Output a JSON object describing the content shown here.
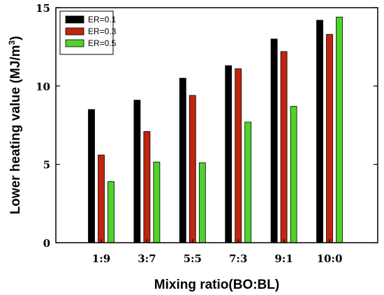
{
  "chart_data": {
    "type": "bar",
    "title": "",
    "xlabel": "Mixing ratio(BO:BL)",
    "ylabel": "Lower heating value (MJ/m³)",
    "ylabel_parts": {
      "text": "Lower heating value (MJ/m",
      "sup": "3",
      "close": ")"
    },
    "ylim": [
      0,
      15
    ],
    "yticks": [
      0,
      5,
      10,
      15
    ],
    "yticks_labels": [
      "0",
      "5",
      "10",
      "15"
    ],
    "grid": false,
    "legend_position": "top-left",
    "categories": [
      "1:9",
      "3:7",
      "5:5",
      "7:3",
      "9:1",
      "10:0"
    ],
    "series": [
      {
        "name": "ER=0.1",
        "color": "#000000",
        "values": [
          8.5,
          9.1,
          10.5,
          11.3,
          13.0,
          14.2
        ]
      },
      {
        "name": "ER=0.3",
        "color": "#c0250f",
        "values": [
          5.6,
          7.1,
          9.4,
          11.1,
          12.2,
          13.3
        ]
      },
      {
        "name": "ER=0.5",
        "color": "#4fd22b",
        "values": [
          3.9,
          5.15,
          5.1,
          7.7,
          8.7,
          14.4
        ]
      }
    ]
  }
}
